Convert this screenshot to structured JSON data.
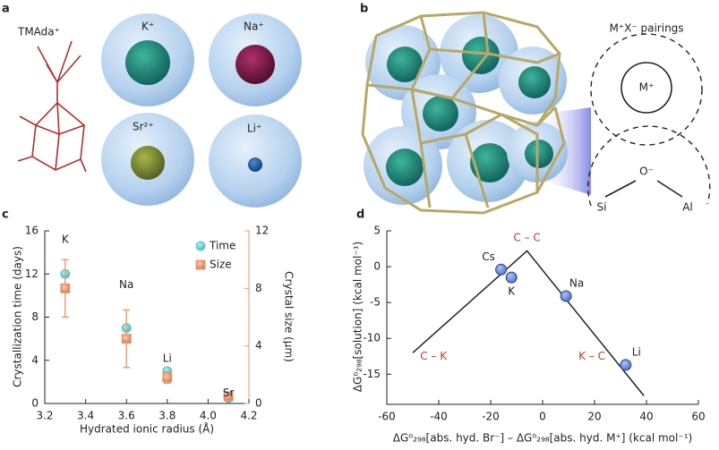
{
  "panel_a": {
    "label": "a",
    "molecule": "TMAda⁺",
    "ions": [
      "K⁺",
      "Na⁺",
      "Sr²⁺",
      "Li⁺"
    ]
  },
  "panel_b": {
    "label": "b",
    "title": "M⁺X⁻ pairings",
    "cation": "M⁺",
    "anion": "O⁻",
    "atoms": [
      "Si",
      "Al"
    ]
  },
  "chart_data": [
    {
      "type": "scatter",
      "label": "c",
      "x_label": "Hydrated ionic radius (Å)",
      "y_label": "Crystallization time (days)",
      "y2_label": "Crystal size (μm)",
      "x": [
        3.3,
        3.6,
        3.8,
        4.1
      ],
      "point_labels": [
        "K",
        "Na",
        "Li",
        "Sr"
      ],
      "series": [
        {
          "name": "Time",
          "color": "#5fcbd3",
          "marker": "circle",
          "values": [
            12,
            7,
            3,
            0.5
          ]
        },
        {
          "name": "Size",
          "color": "#e59a72",
          "marker": "square",
          "axis": "y2",
          "values": [
            8,
            4.5,
            1.8,
            0.5
          ],
          "errors": [
            2,
            2,
            0.4,
            0.2
          ]
        }
      ],
      "xlim": [
        3.2,
        4.2
      ],
      "xticks": [
        3.2,
        3.4,
        3.6,
        3.8,
        {
          "value": 4,
          "label": "4.0"
        },
        4.2
      ],
      "ylim": [
        0,
        16
      ],
      "yticks": [
        0,
        4,
        8,
        12,
        16
      ],
      "y2lim": [
        0,
        12
      ],
      "y2ticks": [
        0,
        4,
        8,
        12
      ],
      "y2_color": "#e59a72",
      "legend": "upper right"
    },
    {
      "type": "scatter",
      "label": "d",
      "x_label": "ΔG⁰₂₉₈[abs. hyd. Br⁻] – ΔG⁰₂₉₈[abs. hyd. M⁺] (kcal mol⁻¹)",
      "y_label": "ΔG⁰₂₉₈[solution] (kcal mol⁻¹)",
      "x": [
        -16,
        -12,
        9,
        32
      ],
      "point_labels": [
        "Cs",
        "K",
        "Na",
        "Li"
      ],
      "series": [
        {
          "color": "#6f8fd8",
          "marker": "circle",
          "values": [
            -0.4,
            -1.5,
            -4.1,
            -13.7
          ]
        }
      ],
      "lines": [
        {
          "color": "#222222",
          "x": [
            -50,
            -6,
            39
          ],
          "values": [
            -12,
            2.2,
            -18
          ]
        }
      ],
      "annotations": [
        "C – C",
        "C – K",
        "K – C"
      ],
      "annotation_color": "#c0392b",
      "xlim": [
        -60,
        60
      ],
      "xticks": [
        -60,
        -40,
        -20,
        0,
        20,
        40,
        60
      ],
      "ylim": [
        -19.2,
        5
      ],
      "yticks": [
        -15,
        -10,
        -5,
        0,
        5
      ]
    }
  ]
}
